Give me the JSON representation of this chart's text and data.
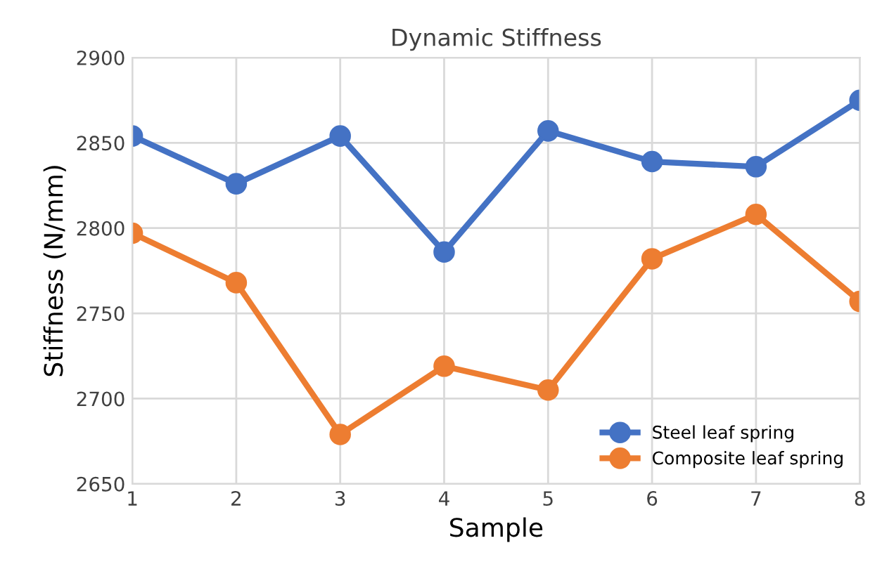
{
  "chart_data": {
    "type": "line",
    "title": "Dynamic Stiffness",
    "xlabel": "Sample",
    "ylabel": "Stiffness (N/mm)",
    "x": [
      1,
      2,
      3,
      4,
      5,
      6,
      7,
      8
    ],
    "series": [
      {
        "name": "Steel leaf spring",
        "color": "#4472c4",
        "values": [
          2854,
          2826,
          2854,
          2786,
          2857,
          2839,
          2836,
          2875
        ]
      },
      {
        "name": "Composite leaf spring",
        "color": "#ed7d31",
        "values": [
          2797,
          2768,
          2679,
          2719,
          2705,
          2782,
          2808,
          2757
        ]
      }
    ],
    "xlim": [
      1,
      8
    ],
    "xticks": [
      1,
      2,
      3,
      4,
      5,
      6,
      7,
      8
    ],
    "ylim": [
      2650,
      2900
    ],
    "yticks": [
      2650,
      2700,
      2750,
      2800,
      2850,
      2900
    ],
    "grid": true,
    "legend": "bottom right",
    "marker": "circle",
    "line_style": "solid"
  }
}
